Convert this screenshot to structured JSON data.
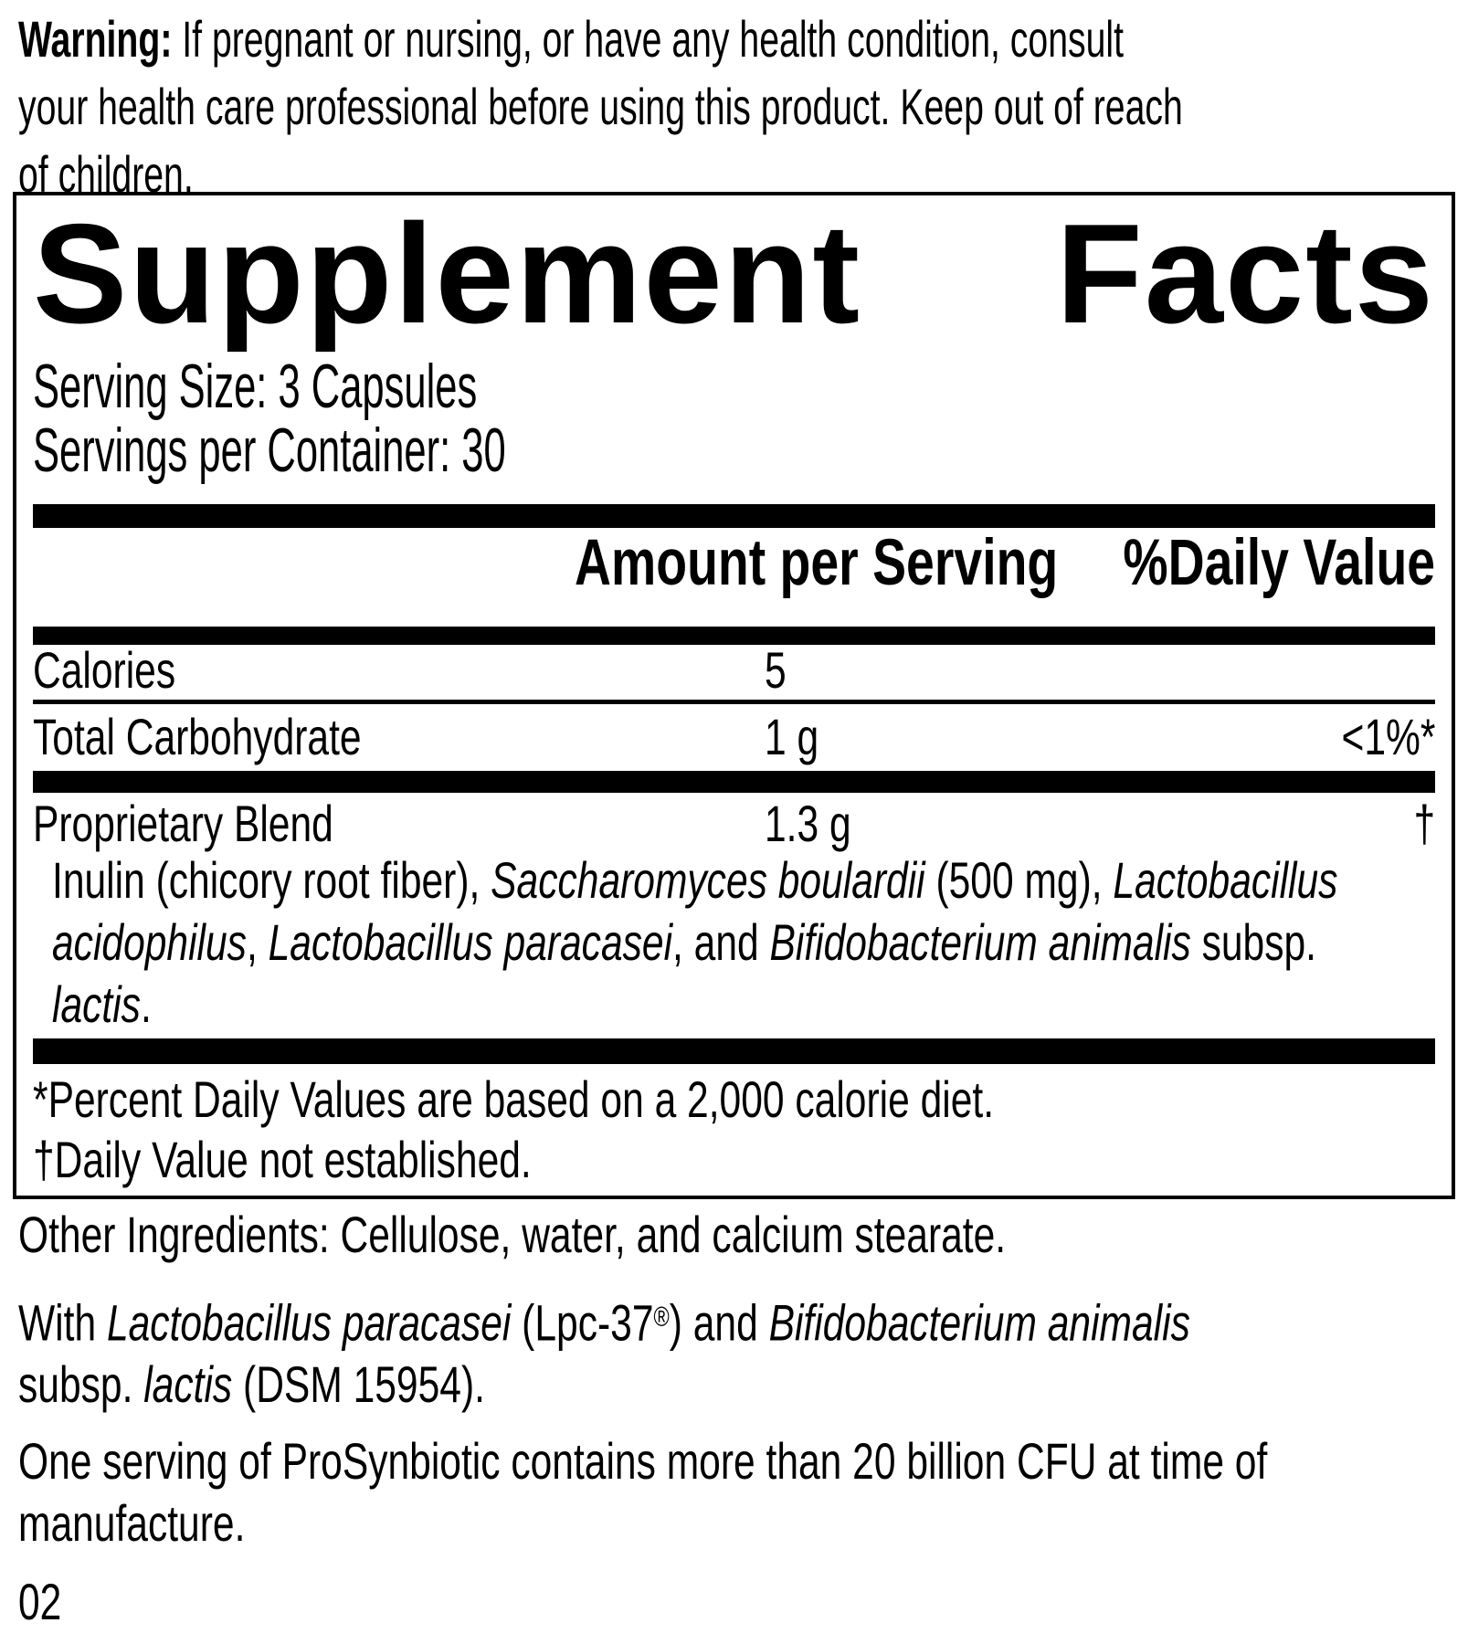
{
  "colors": {
    "ink": "#000000",
    "paper": "#ffffff"
  },
  "warning": {
    "lines": [
      [
        {
          "t": "Warning:",
          "b": true
        },
        {
          "t": " If pregnant or nursing, or have any health condition, consult"
        }
      ],
      [
        {
          "t": "your health care professional before using this product. Keep out of reach"
        }
      ],
      [
        {
          "t": "of children."
        }
      ]
    ]
  },
  "facts_panel": {
    "title_word_1": "Supplement",
    "title_word_2": "Facts",
    "serving_size": "Serving Size: 3 Capsules",
    "servings_per_container": "Servings per Container: 30",
    "column_headers": {
      "amount": "Amount per Serving",
      "daily_value": "%Daily Value"
    },
    "rows": [
      {
        "name": "Calories",
        "amount": "5",
        "dv": ""
      },
      {
        "name": "Total Carbohydrate",
        "amount": "1 g",
        "dv": "<1%*"
      },
      {
        "name": "Proprietary Blend",
        "amount": "1.3 g",
        "dv": "†"
      }
    ],
    "blend_description": {
      "lines": [
        [
          {
            "t": "Inulin (chicory root fiber), "
          },
          {
            "t": "Saccharomyces boulardii",
            "i": true
          },
          {
            "t": " (500 mg), "
          },
          {
            "t": "Lactobacillus",
            "i": true
          }
        ],
        [
          {
            "t": "acidophilus",
            "i": true
          },
          {
            "t": ", "
          },
          {
            "t": "Lactobacillus paracasei",
            "i": true
          },
          {
            "t": ", and "
          },
          {
            "t": "Bifidobacterium animalis",
            "i": true
          },
          {
            "t": " subsp."
          }
        ],
        [
          {
            "t": "lactis",
            "i": true
          },
          {
            "t": "."
          }
        ]
      ]
    },
    "footnotes": [
      [
        {
          "t": "*Percent Daily Values are based on a 2,000 calorie diet."
        }
      ],
      [
        {
          "t": "†Daily Value not established."
        }
      ]
    ]
  },
  "other_ingredients": {
    "lines": [
      [
        {
          "t": "Other Ingredients: Cellulose, water, and calcium stearate."
        }
      ]
    ]
  },
  "with_strains": {
    "lines": [
      [
        {
          "t": "With "
        },
        {
          "t": "Lactobacillus paracasei",
          "i": true
        },
        {
          "t": " (Lpc-37"
        },
        {
          "t": "®",
          "sup": true
        },
        {
          "t": ") and "
        },
        {
          "t": "Bifidobacterium animalis",
          "i": true
        }
      ],
      [
        {
          "t": "subsp. "
        },
        {
          "t": "lactis",
          "i": true
        },
        {
          "t": " (DSM 15954)."
        }
      ]
    ]
  },
  "cfu_statement": {
    "lines": [
      [
        {
          "t": "One serving of ProSynbiotic contains more than 20 billion CFU at time of"
        }
      ],
      [
        {
          "t": "manufacture."
        }
      ]
    ]
  },
  "page_number": "02"
}
